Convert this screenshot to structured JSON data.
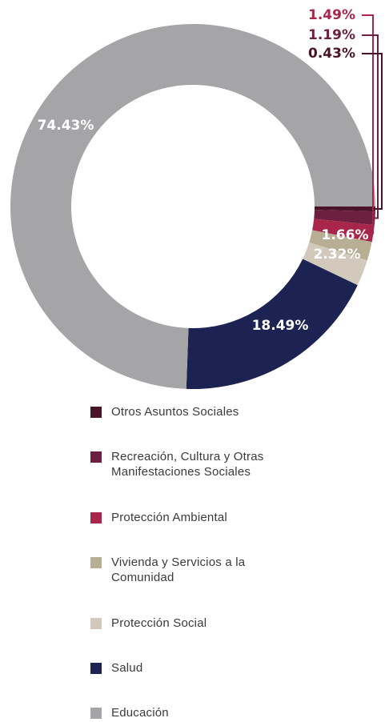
{
  "chart_data": {
    "type": "pie",
    "donut": true,
    "title": "",
    "slices": [
      {
        "name": "Otros Asuntos Sociales",
        "value": 0.43,
        "label": "0.43%",
        "color": "#4a1428"
      },
      {
        "name": "Recreación, Cultura y Otras Manifestaciones Sociales",
        "value": 1.19,
        "label": "1.19%",
        "color": "#6e2040"
      },
      {
        "name": "Protección Ambiental",
        "value": 1.49,
        "label": "1.49%",
        "color": "#a8264a"
      },
      {
        "name": "Vivienda y Servicios a la Comunidad",
        "value": 1.66,
        "label": "1.66%",
        "color": "#b7ae94"
      },
      {
        "name": "Protección Social",
        "value": 2.32,
        "label": "2.32%",
        "color": "#d2c8bb"
      },
      {
        "name": "Salud",
        "value": 18.49,
        "label": "18.49%",
        "color": "#1c2353"
      },
      {
        "name": "Educación",
        "value": 74.43,
        "label": "74.43%",
        "color": "#a5a5a8"
      }
    ],
    "legend_placement": "bottom"
  }
}
